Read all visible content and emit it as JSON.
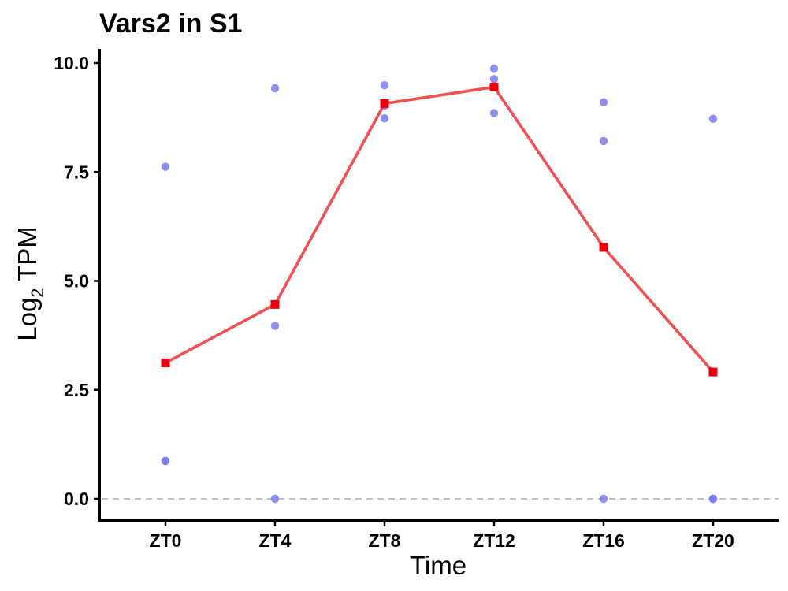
{
  "chart_data": {
    "type": "scatter",
    "title": "Vars2 in S1",
    "xlabel": "Time",
    "ylabel_main": "Log",
    "ylabel_sub": "2",
    "ylabel_tail": " TPM",
    "categories": [
      "ZT0",
      "ZT4",
      "ZT8",
      "ZT12",
      "ZT16",
      "ZT20"
    ],
    "yticks": [
      "0.0",
      "2.5",
      "5.0",
      "7.5",
      "10.0"
    ],
    "ytick_values": [
      0,
      2.5,
      5,
      7.5,
      10
    ],
    "ylim": [
      -0.5,
      10.3
    ],
    "reference_line_y": 0,
    "grid": false,
    "legend": "none",
    "colors": {
      "points": "#7b7bf0",
      "mean_line": "#f05050",
      "mean_marker": "#e8000b",
      "reference_line": "#aaaaaa"
    },
    "series": [
      {
        "kind": "replicates",
        "points": [
          {
            "x": "ZT0",
            "y": 7.62
          },
          {
            "x": "ZT0",
            "y": 0.87
          },
          {
            "x": "ZT0",
            "y": 0.87
          },
          {
            "x": "ZT4",
            "y": 9.42
          },
          {
            "x": "ZT4",
            "y": 3.97
          },
          {
            "x": "ZT4",
            "y": 0.0
          },
          {
            "x": "ZT8",
            "y": 9.49
          },
          {
            "x": "ZT8",
            "y": 9.02
          },
          {
            "x": "ZT8",
            "y": 8.73
          },
          {
            "x": "ZT12",
            "y": 9.87
          },
          {
            "x": "ZT12",
            "y": 9.63
          },
          {
            "x": "ZT12",
            "y": 8.85
          },
          {
            "x": "ZT16",
            "y": 9.1
          },
          {
            "x": "ZT16",
            "y": 8.21
          },
          {
            "x": "ZT16",
            "y": 0.0
          },
          {
            "x": "ZT20",
            "y": 8.72
          },
          {
            "x": "ZT20",
            "y": 0.0
          },
          {
            "x": "ZT20",
            "y": 0.0
          }
        ]
      },
      {
        "kind": "mean",
        "values": [
          3.12,
          4.46,
          9.07,
          9.45,
          5.77,
          2.91
        ]
      }
    ]
  }
}
